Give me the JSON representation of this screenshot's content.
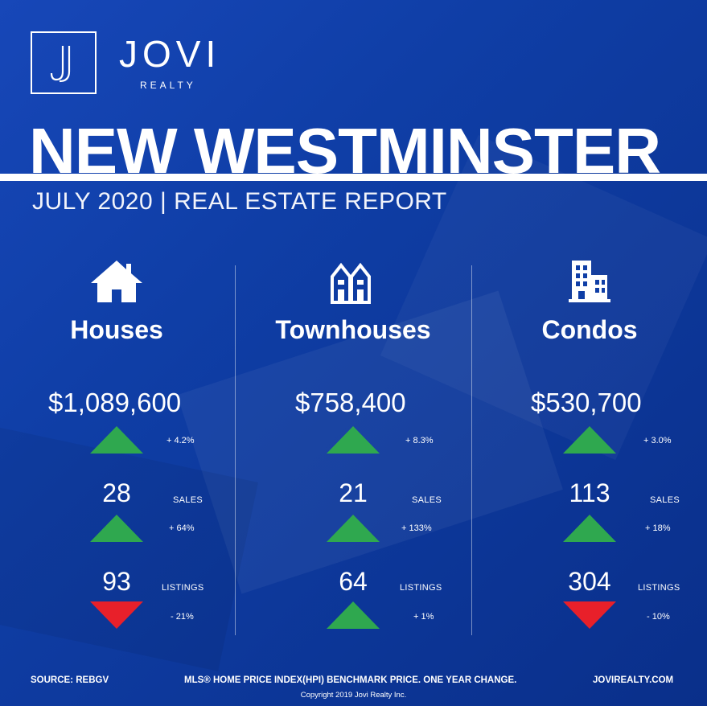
{
  "brand": {
    "name": "JOVI",
    "sub": "REALTY",
    "logo_letter": "J"
  },
  "title": "NEW WESTMINSTER",
  "subtitle": "JULY 2020 | REAL ESTATE REPORT",
  "colors": {
    "background": "#0f3ea6",
    "up": "#2fa84f",
    "down": "#e8202a",
    "text": "#ffffff"
  },
  "columns": [
    {
      "title": "Houses",
      "icon": "house-icon",
      "price": "$1,089,600",
      "price_change": "+ 4.2%",
      "price_trend": "up",
      "sales": "28",
      "sales_label": "SALES",
      "sales_change": "+ 64%",
      "sales_trend": "up",
      "listings": "93",
      "listings_label": "LISTINGS",
      "listings_change": "- 21%",
      "listings_trend": "down"
    },
    {
      "title": "Townhouses",
      "icon": "townhouse-icon",
      "price": "$758,400",
      "price_change": "+ 8.3%",
      "price_trend": "up",
      "sales": "21",
      "sales_label": "SALES",
      "sales_change": "+ 133%",
      "sales_trend": "up",
      "listings": "64",
      "listings_label": "LISTINGS",
      "listings_change": "+ 1%",
      "listings_trend": "up"
    },
    {
      "title": "Condos",
      "icon": "condo-building-icon",
      "price": "$530,700",
      "price_change": "+ 3.0%",
      "price_trend": "up",
      "sales": "113",
      "sales_label": "SALES",
      "sales_change": "+ 18%",
      "sales_trend": "up",
      "listings": "304",
      "listings_label": "LISTINGS",
      "listings_change": "- 10%",
      "listings_trend": "down"
    }
  ],
  "footer": {
    "source": "SOURCE:  REBGV",
    "note": "MLS® HOME PRICE INDEX(HPI) BENCHMARK PRICE. ONE YEAR CHANGE.",
    "website": "JOVIREALTY.COM",
    "copyright": "Copyright 2019 Jovi Realty Inc."
  }
}
